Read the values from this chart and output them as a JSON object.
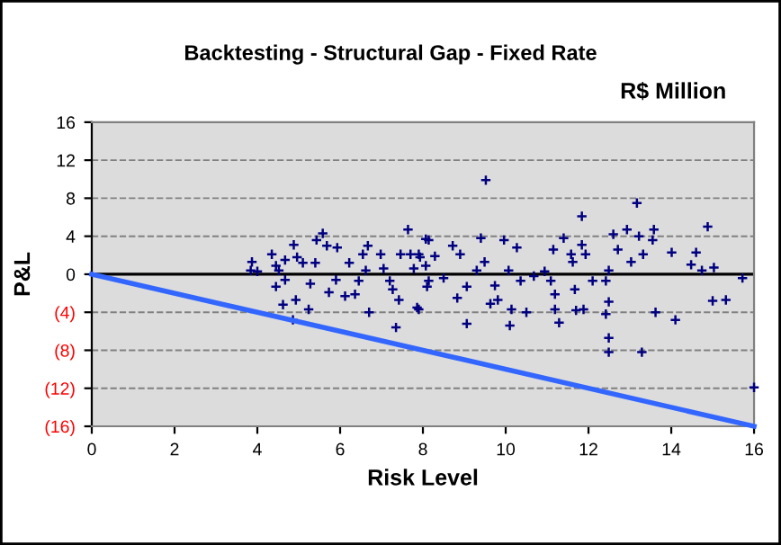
{
  "chart_data": {
    "type": "scatter",
    "title": "Backtesting - Structural Gap - Fixed Rate",
    "xlabel": "Risk Level",
    "ylabel": "P&L",
    "annotations": [
      "R$ Million"
    ],
    "xlim": [
      0,
      16
    ],
    "xticks": [
      0,
      2,
      4,
      6,
      8,
      10,
      12,
      14,
      16
    ],
    "ylim": [
      -16,
      16
    ],
    "yticks": [
      {
        "value": -16,
        "label": "(16)"
      },
      {
        "value": -12,
        "label": "(12)"
      },
      {
        "value": -8,
        "label": "(8)"
      },
      {
        "value": -4,
        "label": "(4)"
      },
      0,
      4,
      8,
      12,
      16
    ],
    "grid": "y",
    "legend": false,
    "ref_lines": [
      {
        "axis": "y",
        "value": 0,
        "color": "#000000",
        "line_style": "solid"
      }
    ],
    "series": [
      {
        "color": "#000080",
        "marker": "cross",
        "x": [
          3.87,
          3.84,
          4.0,
          4.35,
          4.45,
          4.52,
          4.67,
          4.88,
          4.96,
          4.67,
          4.45,
          4.62,
          4.93,
          4.86,
          5.24,
          5.28,
          5.1,
          5.43,
          5.58,
          5.4,
          5.68,
          5.93,
          5.9,
          5.73,
          6.12,
          6.36,
          6.45,
          6.22,
          6.62,
          6.55,
          6.67,
          6.98,
          7.05,
          7.2,
          7.27,
          7.42,
          7.35,
          6.7,
          7.46,
          7.64,
          7.7,
          7.78,
          7.86,
          7.93,
          8.07,
          8.14,
          9.52,
          7.9,
          7.9,
          8.14,
          8.07,
          8.29,
          8.1,
          8.5,
          8.72,
          8.9,
          8.83,
          9.06,
          9.06,
          9.3,
          9.4,
          9.49,
          9.63,
          9.74,
          9.81,
          9.96,
          10.1,
          10.07,
          10.14,
          10.27,
          10.36,
          10.5,
          10.68,
          10.94,
          11.09,
          11.15,
          11.19,
          11.29,
          11.19,
          11.4,
          11.58,
          11.62,
          11.67,
          11.7,
          11.84,
          11.88,
          11.93,
          11.84,
          12.1,
          12.42,
          12.49,
          12.49,
          12.42,
          12.49,
          12.49,
          12.6,
          12.71,
          12.93,
          13.17,
          13.22,
          13.32,
          13.29,
          13.03,
          13.55,
          13.58,
          13.62,
          14.01,
          14.1,
          14.48,
          14.6,
          14.74,
          14.88,
          15.03,
          15.0,
          15.32,
          15.72,
          16.0
        ],
        "values": [
          1.3,
          0.4,
          0.3,
          2.1,
          0.9,
          0.4,
          1.5,
          3.1,
          1.8,
          -0.6,
          -1.3,
          -3.2,
          -2.7,
          -4.8,
          -3.7,
          -1.0,
          1.2,
          3.6,
          4.3,
          1.2,
          3.0,
          2.8,
          -0.6,
          -1.9,
          -2.3,
          -2.1,
          -0.7,
          1.2,
          0.4,
          2.1,
          3.0,
          2.1,
          0.6,
          -0.7,
          -1.6,
          -2.7,
          -5.6,
          -4.0,
          2.1,
          4.7,
          2.1,
          0.6,
          -3.5,
          1.8,
          3.7,
          -0.7,
          9.9,
          2.1,
          -3.7,
          3.6,
          0.9,
          1.9,
          -1.3,
          -0.4,
          3.0,
          2.1,
          -2.5,
          -5.2,
          -1.3,
          0.4,
          3.8,
          1.3,
          -3.1,
          -1.2,
          -2.7,
          3.6,
          -5.4,
          0.4,
          -3.7,
          2.8,
          -0.7,
          -4.0,
          -0.2,
          0.3,
          -0.7,
          2.6,
          -2.1,
          -5.1,
          -3.7,
          3.8,
          2.1,
          1.3,
          -1.6,
          -3.8,
          6.1,
          -3.7,
          2.1,
          3.1,
          -0.7,
          -0.7,
          0.4,
          -2.9,
          -4.2,
          -6.7,
          -8.2,
          4.2,
          2.6,
          4.7,
          7.5,
          4.0,
          2.1,
          -8.2,
          1.3,
          3.6,
          4.7,
          -4.0,
          2.3,
          -4.8,
          1.0,
          2.3,
          0.4,
          5.0,
          0.7,
          -2.8,
          -2.7,
          -0.4,
          -11.9
        ]
      },
      {
        "type": "line",
        "color": "#3366ff",
        "marker": "none",
        "line_style": "solid",
        "x": [
          0,
          16
        ],
        "values": [
          0,
          -16
        ]
      }
    ]
  }
}
